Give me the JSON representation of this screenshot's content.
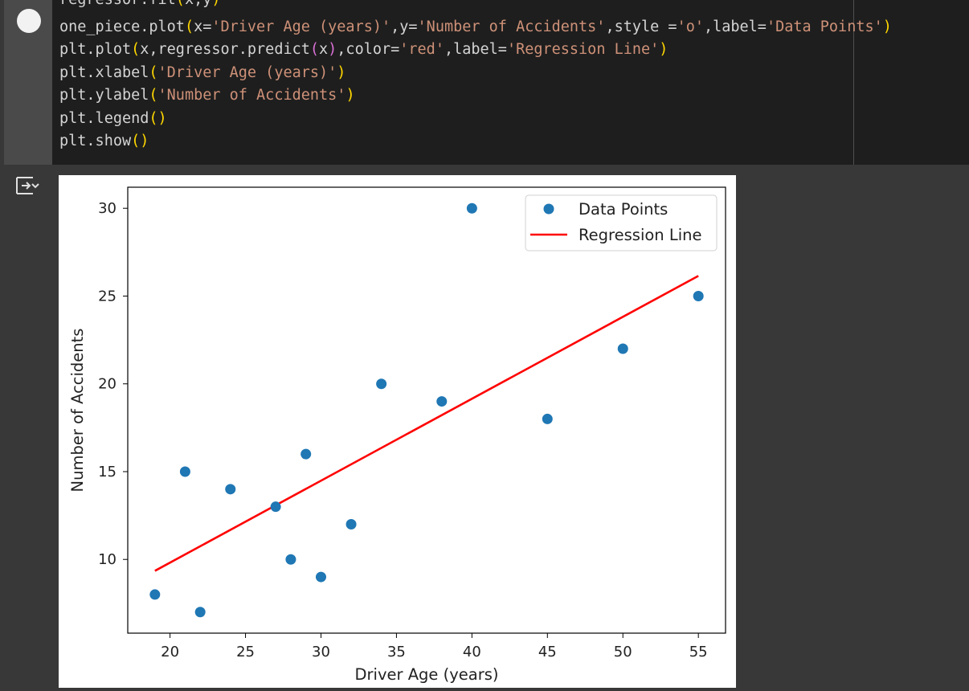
{
  "code": {
    "lines": [
      [
        {
          "t": "regressor.fit",
          "c": ""
        },
        {
          "t": "(",
          "c": "p1"
        },
        {
          "t": "x,y",
          "c": ""
        },
        {
          "t": ")",
          "c": "p1"
        }
      ],
      [
        {
          "t": "one_piece.plot",
          "c": ""
        },
        {
          "t": "(",
          "c": "p1"
        },
        {
          "t": "x=",
          "c": ""
        },
        {
          "t": "'Driver Age (years)'",
          "c": "s"
        },
        {
          "t": ",y=",
          "c": ""
        },
        {
          "t": "'Number of Accidents'",
          "c": "s"
        },
        {
          "t": ",style =",
          "c": ""
        },
        {
          "t": "'o'",
          "c": "s"
        },
        {
          "t": ",label=",
          "c": ""
        },
        {
          "t": "'Data Points'",
          "c": "s"
        },
        {
          "t": ")",
          "c": "p1"
        }
      ],
      [
        {
          "t": "plt.plot",
          "c": ""
        },
        {
          "t": "(",
          "c": "p1"
        },
        {
          "t": "x,regressor.predict",
          "c": ""
        },
        {
          "t": "(",
          "c": "p2"
        },
        {
          "t": "x",
          "c": ""
        },
        {
          "t": ")",
          "c": "p2"
        },
        {
          "t": ",color=",
          "c": ""
        },
        {
          "t": "'red'",
          "c": "s"
        },
        {
          "t": ",label=",
          "c": ""
        },
        {
          "t": "'Regression Line'",
          "c": "s"
        },
        {
          "t": ")",
          "c": "p1"
        }
      ],
      [
        {
          "t": "plt.xlabel",
          "c": ""
        },
        {
          "t": "(",
          "c": "p1"
        },
        {
          "t": "'Driver Age (years)'",
          "c": "s"
        },
        {
          "t": ")",
          "c": "p1"
        }
      ],
      [
        {
          "t": "plt.ylabel",
          "c": ""
        },
        {
          "t": "(",
          "c": "p1"
        },
        {
          "t": "'Number of Accidents'",
          "c": "s"
        },
        {
          "t": ")",
          "c": "p1"
        }
      ],
      [
        {
          "t": "plt.legend",
          "c": ""
        },
        {
          "t": "()",
          "c": "p1"
        }
      ],
      [
        {
          "t": "plt.show",
          "c": ""
        },
        {
          "t": "()",
          "c": "p1"
        }
      ]
    ]
  },
  "icons": {
    "run": "run-cell-icon",
    "output_toggle": "output-toggle-icon"
  },
  "colors": {
    "points": "#1f77b4",
    "regression": "#ff0000"
  },
  "chart_data": {
    "type": "scatter",
    "xlabel": "Driver Age (years)",
    "ylabel": "Number of Accidents",
    "xlim": [
      17.2,
      56.8
    ],
    "ylim": [
      5.8,
      31.2
    ],
    "xticks": [
      20,
      25,
      30,
      35,
      40,
      45,
      50,
      55
    ],
    "yticks": [
      10,
      15,
      20,
      25,
      30
    ],
    "legend": {
      "placement": "top-right",
      "entries": [
        "Data Points",
        "Regression Line"
      ]
    },
    "series": [
      {
        "name": "Data Points",
        "kind": "scatter",
        "x": [
          19,
          21,
          22,
          24,
          27,
          28,
          29,
          30,
          32,
          34,
          38,
          40,
          45,
          50,
          55
        ],
        "y": [
          8,
          15,
          7,
          14,
          13,
          10,
          16,
          9,
          12,
          20,
          19,
          30,
          18,
          22,
          25
        ]
      },
      {
        "name": "Regression Line",
        "kind": "line",
        "x": [
          19,
          55
        ],
        "y": [
          9.35,
          26.15
        ]
      }
    ]
  }
}
